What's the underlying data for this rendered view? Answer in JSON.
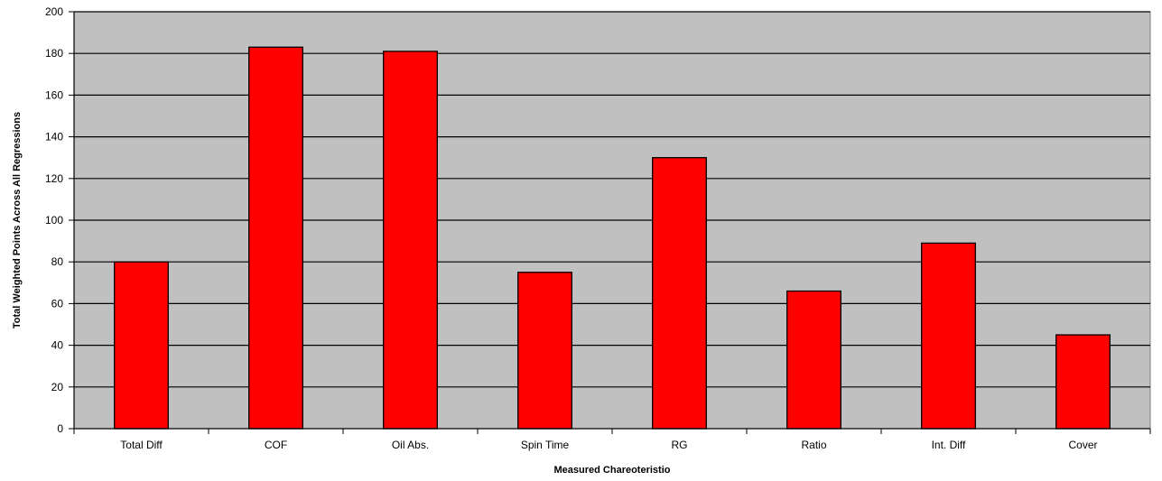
{
  "chart_data": {
    "type": "bar",
    "title": "",
    "xlabel": "Measured Chareoteristio",
    "ylabel": "Total Weighted Points Across All Regressions",
    "categories": [
      "Total Diff",
      "COF",
      "Oil Abs.",
      "Spin Time",
      "RG",
      "Ratio",
      "Int. Diff",
      "Cover"
    ],
    "values": [
      80,
      183,
      181,
      75,
      130,
      66,
      89,
      45
    ],
    "ylim": [
      0,
      200
    ],
    "yticks": [
      0,
      20,
      40,
      60,
      80,
      100,
      120,
      140,
      160,
      180,
      200
    ],
    "grid": true,
    "legend": "none",
    "colors": {
      "bar": "#ff0000",
      "plot_background": "#c0c0c0",
      "gridline": "#000000"
    }
  }
}
